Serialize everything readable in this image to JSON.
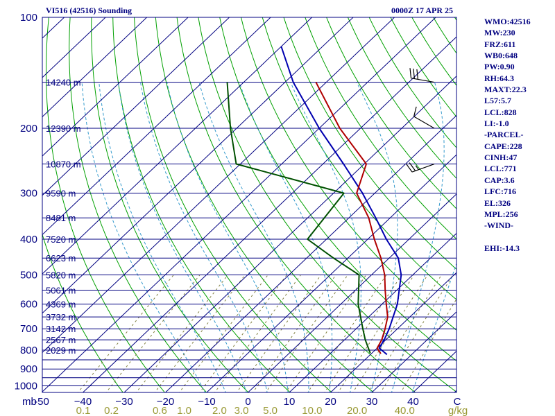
{
  "header": {
    "station": "VI516 (42516) Sounding",
    "time": "0000Z 17 APR 25"
  },
  "indices": [
    "WMO:42516",
    "MW:230",
    "FRZ:611",
    "WB0:648",
    "PW:0.90",
    "RH:64.3",
    "MAXT:22.3",
    "L57:5.7",
    "LCL:828",
    "LI:-1.0",
    "-PARCEL-",
    "CAPE:228",
    "CINH:47",
    "LCL:771",
    "CAP:3.6",
    "LFC:716",
    "EL:326",
    "MPL:256",
    "-WIND-",
    "",
    "EHI:-14.3"
  ],
  "colors": {
    "frame": "#000080",
    "isotherm": "#000080",
    "isobar": "#000080",
    "dry_adiabat": "#00a000",
    "moist_adiabat": "#3399cc",
    "mixing_ratio": "#808040",
    "temperature": "#b00000",
    "dewpoint": "#005000",
    "parcel": "#0000b0",
    "mixing_ratio_labels": "#999933"
  },
  "chart_data": {
    "type": "skew-t",
    "ylabel": "mb",
    "xunits": "C",
    "mixing_ratio_units": "g/kg",
    "pressure_levels": [
      100,
      200,
      300,
      400,
      500,
      600,
      700,
      800,
      900,
      1000
    ],
    "temperature_ticks": [
      -50,
      -40,
      -30,
      -20,
      -10,
      0,
      10,
      20,
      30,
      40
    ],
    "temperature_tick_labels": [
      "-50",
      "−40",
      "−30",
      "−20",
      "−10",
      "0",
      "10",
      "20",
      "30",
      "40"
    ],
    "mixing_ratio_ticks": [
      {
        "label": "0.1",
        "value": 0.1
      },
      {
        "label": "0.2",
        "value": 0.2
      },
      {
        "label": "0.6",
        "value": 0.6
      },
      {
        "label": "1.0",
        "value": 1.0
      },
      {
        "label": "2.0",
        "value": 2.0
      },
      {
        "label": "3.0",
        "value": 3.0
      },
      {
        "label": "5.0",
        "value": 5.0
      },
      {
        "label": "10.0",
        "value": 10.0
      },
      {
        "label": "20.0",
        "value": 20.0
      },
      {
        "label": "40.0",
        "value": 40.0
      }
    ],
    "height_labels": [
      {
        "p": 150,
        "text": "14240 m"
      },
      {
        "p": 200,
        "text": "12390 m"
      },
      {
        "p": 250,
        "text": "10870 m"
      },
      {
        "p": 300,
        "text": "9590 m"
      },
      {
        "p": 350,
        "text": "8481 m"
      },
      {
        "p": 400,
        "text": "7520 m"
      },
      {
        "p": 450,
        "text": "6623 m"
      },
      {
        "p": 500,
        "text": "5820 m"
      },
      {
        "p": 550,
        "text": "5061 m"
      },
      {
        "p": 600,
        "text": "4369 m"
      },
      {
        "p": 650,
        "text": "3732 m"
      },
      {
        "p": 700,
        "text": "3142 m"
      },
      {
        "p": 750,
        "text": "2567 m"
      },
      {
        "p": 800,
        "text": "2029 m"
      }
    ],
    "temperature_profile": [
      {
        "p": 818,
        "t": 22.3
      },
      {
        "p": 790,
        "t": 20.0
      },
      {
        "p": 750,
        "t": 19.0
      },
      {
        "p": 700,
        "t": 17.0
      },
      {
        "p": 650,
        "t": 14.6
      },
      {
        "p": 600,
        "t": 11.0
      },
      {
        "p": 550,
        "t": 7.2
      },
      {
        "p": 500,
        "t": 3.2
      },
      {
        "p": 450,
        "t": -2.0
      },
      {
        "p": 400,
        "t": -8.4
      },
      {
        "p": 350,
        "t": -15.2
      },
      {
        "p": 300,
        "t": -24.4
      },
      {
        "p": 250,
        "t": -29.5
      },
      {
        "p": 200,
        "t": -45.0
      },
      {
        "p": 150,
        "t": -62.5
      }
    ],
    "dewpoint_profile": [
      {
        "p": 815,
        "t": 19.6
      },
      {
        "p": 750,
        "t": 15.0
      },
      {
        "p": 700,
        "t": 11.6
      },
      {
        "p": 600,
        "t": 4.2
      },
      {
        "p": 500,
        "t": -3.0
      },
      {
        "p": 450,
        "t": -13.5
      },
      {
        "p": 400,
        "t": -24.6
      },
      {
        "p": 300,
        "t": -27.5
      },
      {
        "p": 250,
        "t": -61.0
      },
      {
        "p": 200,
        "t": -71.5
      },
      {
        "p": 150,
        "t": -84.0
      }
    ],
    "parcel_profile": [
      {
        "p": 822,
        "t": 24.0
      },
      {
        "p": 790,
        "t": 20.5
      },
      {
        "p": 750,
        "t": 19.6
      },
      {
        "p": 700,
        "t": 18.0
      },
      {
        "p": 600,
        "t": 13.7
      },
      {
        "p": 500,
        "t": 7.2
      },
      {
        "p": 450,
        "t": 2.2
      },
      {
        "p": 400,
        "t": -5.5
      },
      {
        "p": 350,
        "t": -13.5
      },
      {
        "p": 300,
        "t": -23.0
      },
      {
        "p": 250,
        "t": -35.0
      },
      {
        "p": 200,
        "t": -50.0
      },
      {
        "p": 150,
        "t": -68.0
      },
      {
        "p": 120,
        "t": -80.0
      }
    ],
    "wind_barbs": [
      {
        "p": 150,
        "direction": 280,
        "speed_kt": 30
      },
      {
        "p": 200,
        "direction": 300,
        "speed_kt": 10
      },
      {
        "p": 250,
        "direction": 250,
        "speed_kt": 25
      }
    ]
  }
}
